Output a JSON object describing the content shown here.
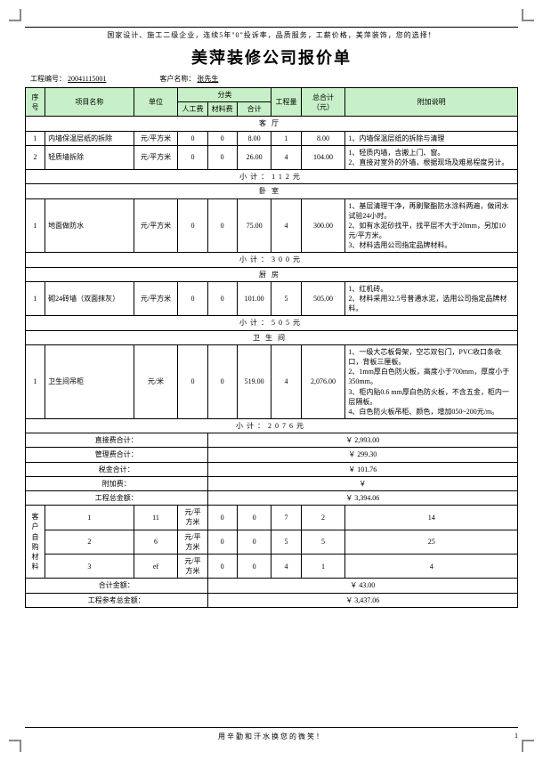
{
  "header": {
    "tagline": "国家设计、施工二级企业，连续5年\"0\"投诉率，品质服务，工薪价格，美萍装饰，您的选择！",
    "title": "美萍装修公司报价单",
    "project_no_label": "工程编号：",
    "project_no": "20041115001",
    "customer_label": "客户名称：",
    "customer": "张先生"
  },
  "columns": {
    "seq": "序号",
    "item": "项目名称",
    "unit": "单位",
    "cat": "分类",
    "labor": "人工费",
    "material": "材料费",
    "sum": "合计",
    "qty": "工程量",
    "total": "总合计（元）",
    "remark": "附加说明"
  },
  "sections": [
    {
      "name": "客厅",
      "rows": [
        {
          "seq": "1",
          "item": "内墙保温层纸的拆除",
          "unit": "元/平方米",
          "labor": "0",
          "mat": "0",
          "sum": "8.00",
          "qty": "1",
          "total": "8.00",
          "note": "1、内墙保温层纸的拆除与清理"
        },
        {
          "seq": "2",
          "item": "轻质墙拆除",
          "unit": "元/平方米",
          "labor": "0",
          "mat": "0",
          "sum": "26.00",
          "qty": "4",
          "total": "104.00",
          "note": "1、轻质内墙，含搬上门、窗。\n2、直接对室外的外墙，根据现场及难易程度另计。"
        }
      ],
      "subtotal": "小计：112元"
    },
    {
      "name": "卧室",
      "rows": [
        {
          "seq": "1",
          "item": "地面做防水",
          "unit": "元/平方米",
          "labor": "0",
          "mat": "0",
          "sum": "75.00",
          "qty": "4",
          "total": "300.00",
          "note": "1、基层清理干净，再刷聚酯防水涂料两遍，做闭水试验24小时。\n2、如有水泥砂找平，找平层不大于20mm，另加10元/平方米。\n3、材料选用公司指定品牌材料。"
        }
      ],
      "subtotal": "小计：300元"
    },
    {
      "name": "厨房",
      "rows": [
        {
          "seq": "1",
          "item": "砌24砖墙（双面抹灰）",
          "unit": "元/平方米",
          "labor": "0",
          "mat": "0",
          "sum": "101.00",
          "qty": "5",
          "total": "505.00",
          "note": "1、红机砖。\n2、材料采用32.5号普通水泥，选用公司指定品牌材料。"
        }
      ],
      "subtotal": "小计：505元"
    },
    {
      "name": "卫生间",
      "rows": [
        {
          "seq": "1",
          "item": "卫生间吊柜",
          "unit": "元/米",
          "labor": "0",
          "mat": "0",
          "sum": "519.00",
          "qty": "4",
          "total": "2,076.00",
          "note": "1、一级大芯板骨架，空芯双包门，PVC收口条收口，背板三厘板。\n2、1mm厚白色防火板，高度小于700mm，厚度小于350mm。\n3、柜内贴0.6 mm厚白色防火板，不含五金，柜内一层隔板。\n4、白色防火板吊柜、颜色，增加050~200元/m。"
        }
      ],
      "subtotal": "小计：2076元"
    }
  ],
  "summary": [
    {
      "label": "直接费合计：",
      "value": "￥ 2,993.00"
    },
    {
      "label": "管理费合计：",
      "value": "￥ 299.30"
    },
    {
      "label": "税金合计：",
      "value": "￥ 101.76"
    },
    {
      "label": "附加费：",
      "value": "￥"
    },
    {
      "label": "工程总金额：",
      "value": "￥ 3,394.06"
    }
  ],
  "cust_materials": {
    "label": "客户自购材料",
    "rows": [
      {
        "seq": "1",
        "item": "11",
        "unit": "元/平方米",
        "labor": "0",
        "mat": "0",
        "sum": "7",
        "qty": "2",
        "total": "14"
      },
      {
        "seq": "2",
        "item": "6",
        "unit": "元/平方米",
        "labor": "0",
        "mat": "0",
        "sum": "5",
        "qty": "5",
        "total": "25"
      },
      {
        "seq": "3",
        "item": "ef",
        "unit": "元/平方米",
        "labor": "0",
        "mat": "0",
        "sum": "4",
        "qty": "1",
        "total": "4"
      }
    ]
  },
  "trailer": [
    {
      "label": "合计金额：",
      "value": "￥ 43.00"
    },
    {
      "label": "工程参考总金额：",
      "value": "￥ 3,437.06"
    }
  ],
  "footer": {
    "slogan": "用辛勤和汗水换您的微笑！",
    "page": "1"
  },
  "colors": {
    "header_bg": "#c8f0c8"
  }
}
